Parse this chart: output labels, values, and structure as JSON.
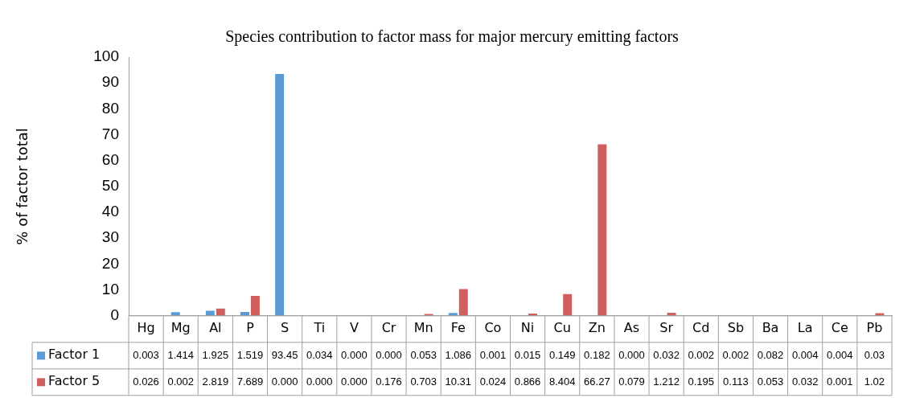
{
  "chart_data": {
    "type": "bar",
    "title": "Species contribution to factor mass for major mercury emitting factors",
    "ylabel": "% of factor total",
    "categories": [
      "Hg",
      "Mg",
      "Al",
      "P",
      "S",
      "Ti",
      "V",
      "Cr",
      "Mn",
      "Fe",
      "Co",
      "Ni",
      "Cu",
      "Zn",
      "As",
      "Sr",
      "Cd",
      "Sb",
      "Ba",
      "La",
      "Ce",
      "Pb"
    ],
    "series": [
      {
        "name": "Factor 1",
        "color": "#5b9bd5",
        "values": [
          0.003,
          1.414,
          1.925,
          1.519,
          93.45,
          0.034,
          0.0,
          0.0,
          0.053,
          1.086,
          0.001,
          0.015,
          0.149,
          0.182,
          0.0,
          0.032,
          0.002,
          0.002,
          0.082,
          0.004,
          0.004,
          0.03
        ],
        "value_labels": [
          "0.003",
          "1.414",
          "1.925",
          "1.519",
          "93.45",
          "0.034",
          "0.000",
          "0.000",
          "0.053",
          "1.086",
          "0.001",
          "0.015",
          "0.149",
          "0.182",
          "0.000",
          "0.032",
          "0.002",
          "0.002",
          "0.082",
          "0.004",
          "0.004",
          "0.03"
        ]
      },
      {
        "name": "Factor 5",
        "color": "#d0605e",
        "values": [
          0.026,
          0.002,
          2.819,
          7.689,
          0.0,
          0.0,
          0.0,
          0.176,
          0.703,
          10.31,
          0.024,
          0.866,
          8.404,
          66.27,
          0.079,
          1.212,
          0.195,
          0.113,
          0.053,
          0.032,
          0.001,
          1.02
        ],
        "value_labels": [
          "0.026",
          "0.002",
          "2.819",
          "7.689",
          "0.000",
          "0.000",
          "0.000",
          "0.176",
          "0.703",
          "10.31",
          "0.024",
          "0.866",
          "8.404",
          "66.27",
          "0.079",
          "1.212",
          "0.195",
          "0.113",
          "0.053",
          "0.032",
          "0.001",
          "1.02"
        ]
      }
    ],
    "ylim": [
      0,
      100
    ],
    "yticks": [
      0,
      10,
      20,
      30,
      40,
      50,
      60,
      70,
      80,
      90,
      100
    ],
    "grid": false,
    "legend": "bottom left"
  }
}
